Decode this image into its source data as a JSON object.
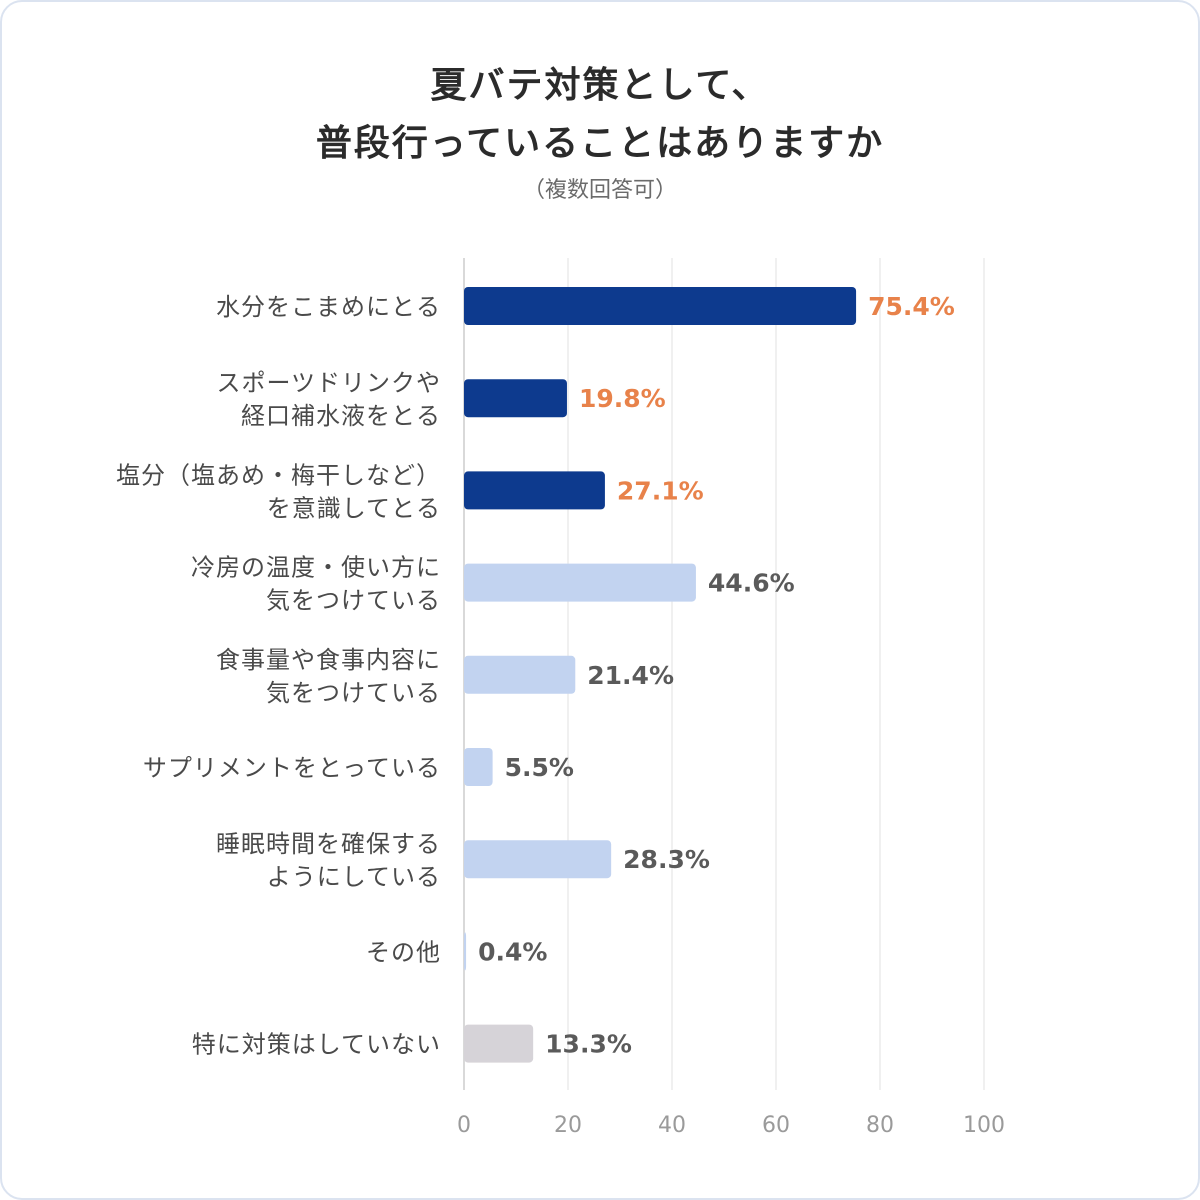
{
  "title_lines": [
    "夏バテ対策として、",
    "普段行っていることはありますか"
  ],
  "subtitle": "（複数回答可）",
  "chart_data": {
    "type": "bar",
    "orientation": "horizontal",
    "title": "夏バテ対策として、普段行っていることはありますか",
    "subtitle": "（複数回答可）",
    "categories": [
      [
        "水分をこまめにとる"
      ],
      [
        "スポーツドリンクや",
        "経口補水液をとる"
      ],
      [
        "塩分（塩あめ・梅干しなど）",
        "を意識してとる"
      ],
      [
        "冷房の温度・使い方に",
        "気をつけている"
      ],
      [
        "食事量や食事内容に",
        "気をつけている"
      ],
      [
        "サプリメントをとっている"
      ],
      [
        "睡眠時間を確保する",
        "ようにしている"
      ],
      [
        "その他"
      ],
      [
        "特に対策はしていない"
      ]
    ],
    "values": [
      75.4,
      19.8,
      27.1,
      44.6,
      21.4,
      5.5,
      28.3,
      0.4,
      13.3
    ],
    "value_labels": [
      "75.4%",
      "19.8%",
      "27.1%",
      "44.6%",
      "21.4%",
      "5.5%",
      "28.3%",
      "0.4%",
      "13.3%"
    ],
    "bar_colors": [
      "#0d3a8e",
      "#0d3a8e",
      "#0d3a8e",
      "#c2d3f0",
      "#c2d3f0",
      "#c2d3f0",
      "#c2d3f0",
      "#c2d3f0",
      "#d6d3d8"
    ],
    "label_colors": [
      "#e8824a",
      "#e8824a",
      "#e8824a",
      "#5a5a5a",
      "#5a5a5a",
      "#5a5a5a",
      "#5a5a5a",
      "#5a5a5a",
      "#5a5a5a"
    ],
    "xlim": [
      0,
      100
    ],
    "xticks": [
      0,
      20,
      40,
      60,
      80,
      100
    ],
    "grid": true
  }
}
